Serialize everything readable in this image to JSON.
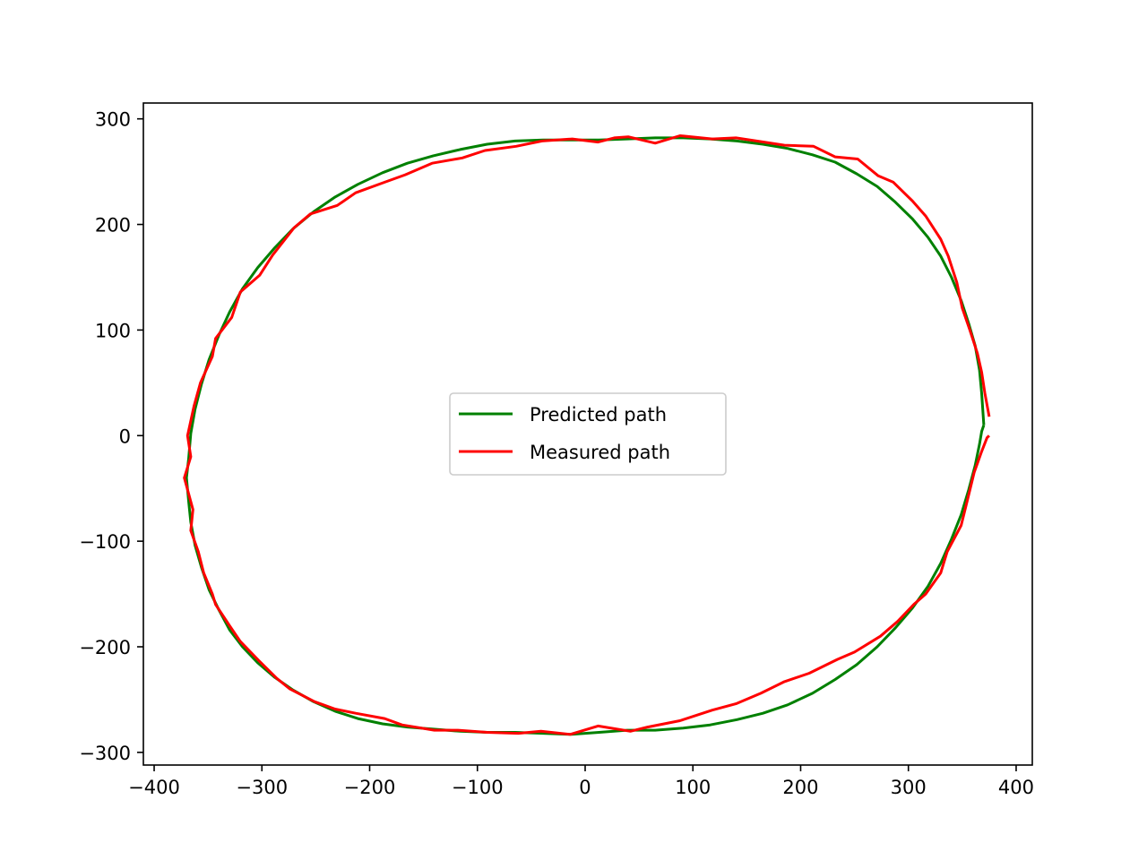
{
  "chart_data": {
    "type": "line",
    "title": "",
    "xlabel": "",
    "ylabel": "",
    "xlim": [
      -410,
      415
    ],
    "ylim": [
      -312,
      315
    ],
    "xticks": [
      -400,
      -300,
      -200,
      -100,
      0,
      100,
      200,
      300,
      400
    ],
    "yticks": [
      -300,
      -200,
      -100,
      0,
      100,
      200,
      300
    ],
    "xtick_labels": [
      "−400",
      "−300",
      "−200",
      "−100",
      "0",
      "100",
      "200",
      "300",
      "400"
    ],
    "ytick_labels": [
      "−300",
      "−200",
      "−100",
      "0",
      "100",
      "200",
      "300"
    ],
    "grid": false,
    "legend_position": "center",
    "series": [
      {
        "name": "Predicted path",
        "color": "#008000",
        "x": [
          370,
          368,
          366,
          362,
          356,
          349,
          340,
          330,
          318,
          304,
          288,
          271,
          252,
          232,
          211,
          188,
          165,
          141,
          116,
          91,
          65,
          39,
          13,
          -13,
          -39,
          -65,
          -91,
          -116,
          -141,
          -165,
          -188,
          -211,
          -232,
          -252,
          -271,
          -288,
          -304,
          -318,
          -330,
          -340,
          -349,
          -356,
          -362,
          -366,
          -368,
          -370,
          -368,
          -366,
          -362,
          -356,
          -349,
          -340,
          -330,
          -318,
          -304,
          -288,
          -271,
          -252,
          -232,
          -211,
          -188,
          -165,
          -141,
          -116,
          -91,
          -65,
          -39,
          -13,
          13,
          39,
          65,
          91,
          116,
          141,
          165,
          188,
          211,
          232,
          252,
          271,
          288,
          304,
          318,
          330,
          340,
          349,
          356,
          362,
          366,
          368,
          370
        ],
        "y": [
          10,
          40,
          62,
          85,
          106,
          128,
          150,
          170,
          188,
          205,
          221,
          236,
          248,
          259,
          266,
          272,
          276,
          279,
          281,
          282,
          282,
          281,
          280,
          280,
          280,
          279,
          276,
          271,
          265,
          258,
          249,
          238,
          226,
          212,
          196,
          178,
          159,
          139,
          117,
          95,
          72,
          49,
          25,
          2,
          -22,
          -40,
          -62,
          -82,
          -104,
          -125,
          -146,
          -165,
          -184,
          -200,
          -215,
          -229,
          -241,
          -252,
          -261,
          -268,
          -273,
          -276,
          -278,
          -280,
          -281,
          -281,
          -282,
          -283,
          -281,
          -279,
          -279,
          -277,
          -274,
          -269,
          -263,
          -255,
          -244,
          -231,
          -217,
          -200,
          -182,
          -163,
          -143,
          -121,
          -98,
          -75,
          -51,
          -28,
          -8,
          4,
          10
        ]
      },
      {
        "name": "Measured path",
        "color": "#ff0000",
        "x": [
          375,
          371,
          368,
          364,
          357,
          350,
          345,
          337,
          330,
          316,
          304,
          286,
          272,
          253,
          232,
          212,
          185,
          166,
          140,
          118,
          88,
          65,
          40,
          27,
          12,
          -12,
          -40,
          -64,
          -93,
          -114,
          -142,
          -167,
          -186,
          -213,
          -230,
          -255,
          -270,
          -290,
          -302,
          -320,
          -328,
          -343,
          -346,
          -357,
          -363,
          -369,
          -366,
          -372,
          -364,
          -366,
          -359,
          -354,
          -346,
          -343,
          -330,
          -320,
          -303,
          -286,
          -274,
          -251,
          -232,
          -213,
          -186,
          -170,
          -140,
          -118,
          -91,
          -62,
          -41,
          -14,
          12,
          42,
          58,
          88,
          118,
          140,
          163,
          185,
          208,
          234,
          250,
          274,
          290,
          305,
          316,
          330,
          336,
          349,
          355,
          361,
          368,
          373,
          375
        ],
        "y": [
          18,
          40,
          60,
          78,
          100,
          121,
          145,
          170,
          186,
          208,
          222,
          240,
          246,
          262,
          264,
          274,
          275,
          278,
          282,
          281,
          284,
          277,
          283,
          282,
          278,
          281,
          279,
          274,
          270,
          263,
          258,
          247,
          240,
          230,
          218,
          210,
          197,
          171,
          152,
          136,
          112,
          92,
          75,
          50,
          28,
          0,
          -20,
          -40,
          -70,
          -90,
          -110,
          -130,
          -150,
          -160,
          -180,
          -195,
          -213,
          -230,
          -240,
          -252,
          -259,
          -263,
          -268,
          -274,
          -279,
          -279,
          -281,
          -282,
          -280,
          -283,
          -275,
          -280,
          -276,
          -270,
          -260,
          -254,
          -244,
          -233,
          -225,
          -212,
          -205,
          -190,
          -176,
          -160,
          -150,
          -130,
          -110,
          -85,
          -60,
          -35,
          -15,
          -2,
          0
        ]
      }
    ]
  }
}
